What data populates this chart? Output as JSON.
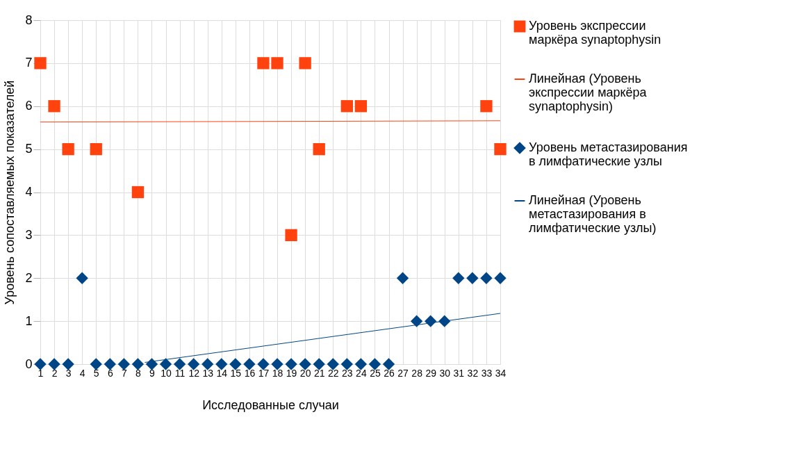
{
  "chart_data": {
    "type": "scatter",
    "xlabel": "Исследованные случаи",
    "ylabel": "Уровень сопоставляемых показателей",
    "x": [
      1,
      2,
      3,
      4,
      5,
      6,
      7,
      8,
      9,
      10,
      11,
      12,
      13,
      14,
      15,
      16,
      17,
      18,
      19,
      20,
      21,
      22,
      23,
      24,
      25,
      26,
      27,
      28,
      29,
      30,
      31,
      32,
      33,
      34
    ],
    "xlim": [
      1,
      34
    ],
    "xticks": [
      1,
      2,
      3,
      4,
      5,
      6,
      7,
      8,
      9,
      10,
      11,
      12,
      13,
      14,
      15,
      16,
      17,
      18,
      19,
      20,
      21,
      22,
      23,
      24,
      25,
      26,
      27,
      28,
      29,
      30,
      31,
      32,
      33,
      34
    ],
    "ylim": [
      0,
      8
    ],
    "yticks": [
      0,
      1,
      2,
      3,
      4,
      5,
      6,
      7,
      8
    ],
    "grid": true,
    "legend": "right",
    "series": [
      {
        "name": "Уровень экспрессии маркёра synaptophysin",
        "color": "#ff420e",
        "marker": "square",
        "values": [
          7,
          6,
          5,
          null,
          5,
          null,
          null,
          4,
          null,
          null,
          null,
          null,
          null,
          null,
          null,
          null,
          7,
          7,
          3,
          7,
          5,
          null,
          6,
          6,
          null,
          null,
          null,
          null,
          null,
          null,
          null,
          null,
          6,
          5
        ]
      },
      {
        "name": "Линейная (Уровень экспрессии маркёра synaptophysin)",
        "type": "line",
        "color": "#ff420e",
        "x": [
          1,
          34
        ],
        "values": [
          5.63,
          5.66
        ]
      },
      {
        "name": "Уровень метастазирования в лимфатические узлы",
        "color": "#004586",
        "marker": "diamond",
        "values": [
          0,
          0,
          0,
          2,
          0,
          0,
          0,
          0,
          0,
          0,
          0,
          0,
          0,
          0,
          0,
          0,
          0,
          0,
          0,
          0,
          0,
          0,
          0,
          0,
          0,
          0,
          2,
          1,
          1,
          1,
          2,
          2,
          2,
          2
        ]
      },
      {
        "name": "Линейная (Уровень метастазирования в лимфатические узлы)",
        "type": "line",
        "color": "#004586",
        "x": [
          8.5,
          34
        ],
        "values": [
          0.04,
          1.18
        ]
      }
    ]
  }
}
